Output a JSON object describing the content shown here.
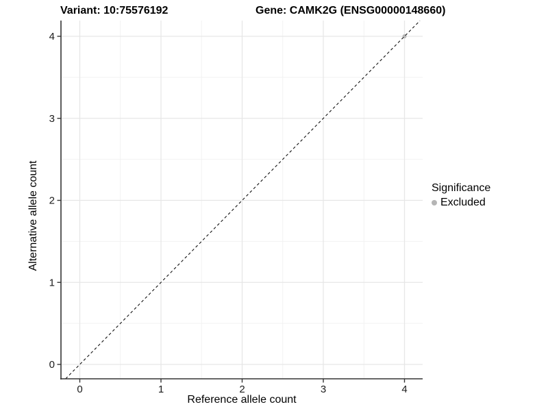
{
  "header": {
    "variant_title": "Variant: 10:75576192",
    "gene_title": "Gene: CAMK2G (ENSG00000148660)"
  },
  "chart_data": {
    "type": "scatter",
    "xlabel": "Reference allele count",
    "ylabel": "Alternative allele count",
    "x_ticks": [
      0,
      1,
      2,
      3,
      4
    ],
    "y_ticks": [
      0,
      1,
      2,
      3,
      4
    ],
    "x_minor_ticks": [
      0.5,
      1.5,
      2.5,
      3.5
    ],
    "y_minor_ticks": [
      0.5,
      1.5,
      2.5,
      3.5
    ],
    "xlim": [
      -0.23,
      4.23
    ],
    "ylim": [
      -0.18,
      4.2
    ],
    "grid": "on",
    "legend_position": "right",
    "series": [
      {
        "name": "Excluded",
        "color": "#b8b8b8",
        "point_radius": 3,
        "points": [
          {
            "x": 4,
            "y": 4
          }
        ]
      }
    ],
    "reference_line": {
      "type": "identity y=x",
      "style": "dashed",
      "color": "#111111",
      "x1": -0.175,
      "y1": -0.175,
      "x2": 4.19,
      "y2": 4.19
    },
    "legend": {
      "title": "Significance",
      "items": [
        {
          "label": "Excluded",
          "color": "#b5b5b5"
        }
      ]
    },
    "colors": {
      "grid_major": "#e6e6e6",
      "grid_minor": "#f2f2f2",
      "axis_line": "#333333",
      "tick_label": "#1a1a1a"
    }
  }
}
